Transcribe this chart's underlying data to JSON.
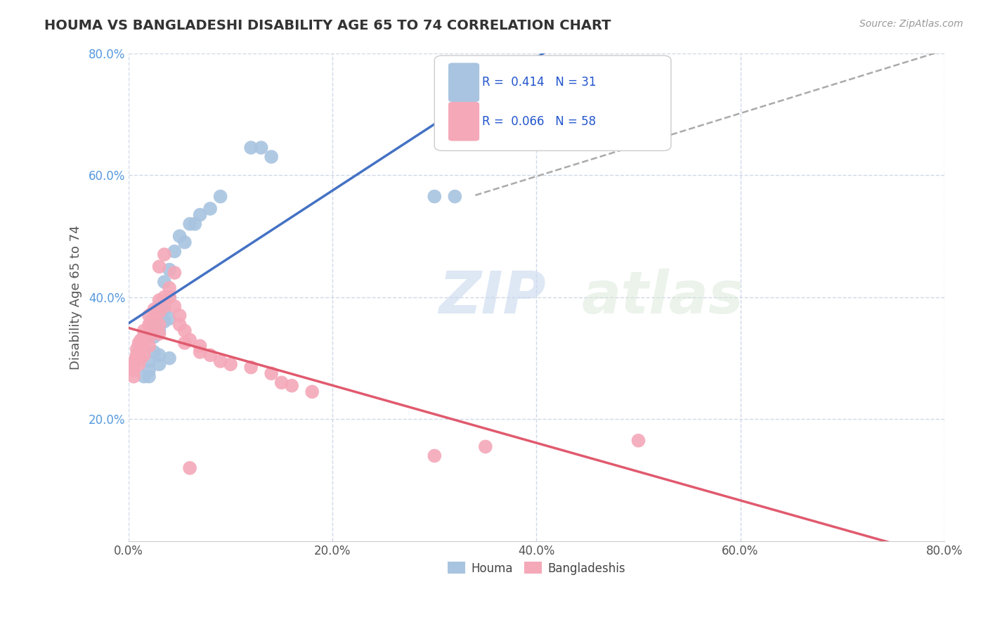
{
  "title": "HOUMA VS BANGLADESHI DISABILITY AGE 65 TO 74 CORRELATION CHART",
  "source": "Source: ZipAtlas.com",
  "ylabel": "Disability Age 65 to 74",
  "xlim": [
    0.0,
    0.8
  ],
  "ylim": [
    0.0,
    0.8
  ],
  "xticks": [
    0.0,
    0.2,
    0.4,
    0.6,
    0.8
  ],
  "yticks": [
    0.2,
    0.4,
    0.6,
    0.8
  ],
  "xticklabels": [
    "0.0%",
    "20.0%",
    "40.0%",
    "60.0%",
    "80.0%"
  ],
  "yticklabels": [
    "20.0%",
    "40.0%",
    "60.0%",
    "80.0%"
  ],
  "R_houma": 0.414,
  "N_houma": 31,
  "R_bangladeshi": 0.066,
  "N_bangladeshi": 58,
  "houma_color": "#a8c4e0",
  "bangladeshi_color": "#f4a8b8",
  "trend_houma_color": "#4472c4",
  "trend_bangladeshi_color": "#e05a6e",
  "watermark_color": "#c8d8e8",
  "background_color": "#ffffff",
  "grid_color": "#d0d8e8",
  "ytick_color": "#5599dd",
  "xtick_color": "#555555",
  "houma_scatter": [
    [
      0.02,
      0.295
    ],
    [
      0.02,
      0.28
    ],
    [
      0.02,
      0.27
    ],
    [
      0.025,
      0.355
    ],
    [
      0.025,
      0.335
    ],
    [
      0.025,
      0.31
    ],
    [
      0.03,
      0.385
    ],
    [
      0.03,
      0.345
    ],
    [
      0.03,
      0.305
    ],
    [
      0.03,
      0.29
    ],
    [
      0.035,
      0.425
    ],
    [
      0.035,
      0.38
    ],
    [
      0.035,
      0.36
    ],
    [
      0.04,
      0.445
    ],
    [
      0.04,
      0.4
    ],
    [
      0.04,
      0.365
    ],
    [
      0.04,
      0.3
    ],
    [
      0.045,
      0.475
    ],
    [
      0.05,
      0.5
    ],
    [
      0.055,
      0.49
    ],
    [
      0.06,
      0.52
    ],
    [
      0.065,
      0.52
    ],
    [
      0.07,
      0.535
    ],
    [
      0.08,
      0.545
    ],
    [
      0.09,
      0.565
    ],
    [
      0.12,
      0.645
    ],
    [
      0.13,
      0.645
    ],
    [
      0.14,
      0.63
    ],
    [
      0.3,
      0.565
    ],
    [
      0.32,
      0.565
    ],
    [
      0.015,
      0.27
    ]
  ],
  "bangladeshi_scatter": [
    [
      0.005,
      0.29
    ],
    [
      0.005,
      0.28
    ],
    [
      0.005,
      0.27
    ],
    [
      0.007,
      0.3
    ],
    [
      0.007,
      0.295
    ],
    [
      0.008,
      0.315
    ],
    [
      0.008,
      0.305
    ],
    [
      0.008,
      0.295
    ],
    [
      0.01,
      0.325
    ],
    [
      0.01,
      0.31
    ],
    [
      0.01,
      0.29
    ],
    [
      0.012,
      0.33
    ],
    [
      0.012,
      0.315
    ],
    [
      0.012,
      0.3
    ],
    [
      0.015,
      0.345
    ],
    [
      0.015,
      0.335
    ],
    [
      0.015,
      0.32
    ],
    [
      0.015,
      0.305
    ],
    [
      0.02,
      0.37
    ],
    [
      0.02,
      0.355
    ],
    [
      0.02,
      0.335
    ],
    [
      0.02,
      0.32
    ],
    [
      0.022,
      0.36
    ],
    [
      0.022,
      0.345
    ],
    [
      0.025,
      0.38
    ],
    [
      0.025,
      0.365
    ],
    [
      0.025,
      0.345
    ],
    [
      0.03,
      0.395
    ],
    [
      0.03,
      0.375
    ],
    [
      0.03,
      0.355
    ],
    [
      0.03,
      0.34
    ],
    [
      0.035,
      0.4
    ],
    [
      0.035,
      0.385
    ],
    [
      0.04,
      0.415
    ],
    [
      0.04,
      0.4
    ],
    [
      0.045,
      0.385
    ],
    [
      0.05,
      0.37
    ],
    [
      0.05,
      0.355
    ],
    [
      0.055,
      0.345
    ],
    [
      0.055,
      0.325
    ],
    [
      0.06,
      0.33
    ],
    [
      0.07,
      0.32
    ],
    [
      0.07,
      0.31
    ],
    [
      0.08,
      0.305
    ],
    [
      0.09,
      0.295
    ],
    [
      0.1,
      0.29
    ],
    [
      0.12,
      0.285
    ],
    [
      0.14,
      0.275
    ],
    [
      0.15,
      0.26
    ],
    [
      0.16,
      0.255
    ],
    [
      0.18,
      0.245
    ],
    [
      0.3,
      0.14
    ],
    [
      0.35,
      0.155
    ],
    [
      0.03,
      0.45
    ],
    [
      0.035,
      0.47
    ],
    [
      0.045,
      0.44
    ],
    [
      0.06,
      0.12
    ],
    [
      0.5,
      0.165
    ]
  ],
  "dashed_line": [
    [
      0.34,
      0.567
    ],
    [
      0.82,
      0.815
    ]
  ]
}
